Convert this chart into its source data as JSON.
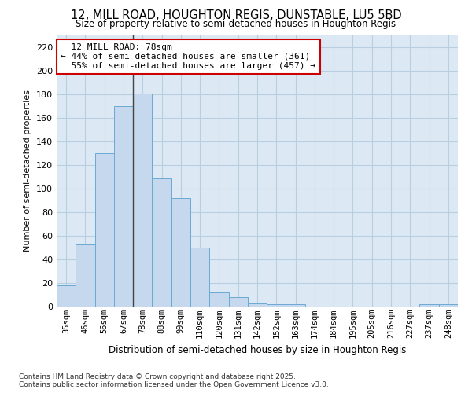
{
  "title": "12, MILL ROAD, HOUGHTON REGIS, DUNSTABLE, LU5 5BD",
  "subtitle": "Size of property relative to semi-detached houses in Houghton Regis",
  "xlabel": "Distribution of semi-detached houses by size in Houghton Regis",
  "ylabel": "Number of semi-detached properties",
  "categories": [
    "35sqm",
    "46sqm",
    "56sqm",
    "67sqm",
    "78sqm",
    "88sqm",
    "99sqm",
    "110sqm",
    "120sqm",
    "131sqm",
    "142sqm",
    "152sqm",
    "163sqm",
    "174sqm",
    "184sqm",
    "195sqm",
    "205sqm",
    "216sqm",
    "227sqm",
    "237sqm",
    "248sqm"
  ],
  "values": [
    18,
    53,
    130,
    170,
    181,
    109,
    92,
    50,
    12,
    8,
    3,
    2,
    2,
    0,
    0,
    0,
    0,
    0,
    0,
    2,
    2
  ],
  "bar_color": "#c5d8ee",
  "bar_edge_color": "#6aaad4",
  "property_label": "12 MILL ROAD: 78sqm",
  "pct_smaller": 44,
  "pct_larger": 55,
  "count_smaller": 361,
  "count_larger": 457,
  "marker_bin_index": 4,
  "ylim": [
    0,
    230
  ],
  "yticks": [
    0,
    20,
    40,
    60,
    80,
    100,
    120,
    140,
    160,
    180,
    200,
    220
  ],
  "annotation_box_color": "#cc0000",
  "grid_color": "#b8cfe0",
  "plot_bg_color": "#dce8f4",
  "fig_bg_color": "#ffffff",
  "footer1": "Contains HM Land Registry data © Crown copyright and database right 2025.",
  "footer2": "Contains public sector information licensed under the Open Government Licence v3.0."
}
